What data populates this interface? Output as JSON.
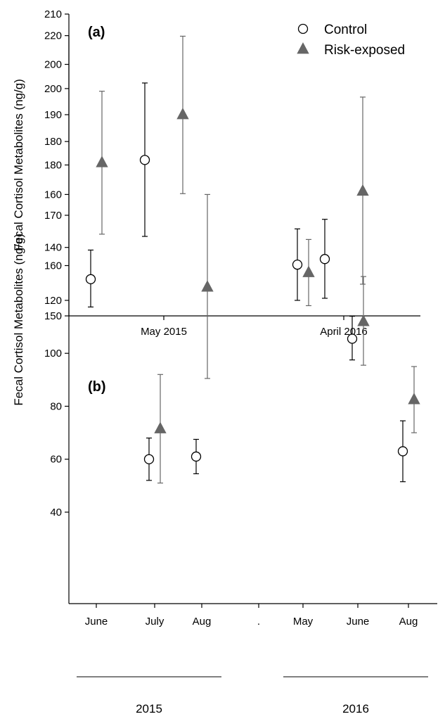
{
  "chart_data": [
    {
      "type": "scatter",
      "panel_label": "(a)",
      "ylabel": "Fecal Cortisol Metabolites (ng/g)",
      "xlabel": "",
      "ylim": [
        150,
        210
      ],
      "yticks": [
        150,
        160,
        170,
        180,
        190,
        200,
        210
      ],
      "grid": false,
      "legend_placement": "top-right",
      "categories": [
        "May 2015",
        "April 2016"
      ],
      "series": [
        {
          "name": "Control",
          "marker": "open-circle",
          "color": "#000000",
          "values": [
            181.0,
            161.3
          ],
          "err_low": [
            165.8,
            153.5
          ],
          "err_high": [
            196.3,
            169.2
          ]
        },
        {
          "name": "Risk-exposed",
          "marker": "filled-triangle",
          "color": "#666666",
          "values": [
            190.0,
            174.8
          ],
          "err_low": [
            174.3,
            156.3
          ],
          "err_high": [
            205.6,
            193.5
          ]
        }
      ]
    },
    {
      "type": "scatter",
      "panel_label": "(b)",
      "ylabel": "Fecal Cortisol Metabolites (ng/g)",
      "xlabel": "",
      "ylim": [
        30,
        220
      ],
      "yticks": [
        40,
        60,
        80,
        100,
        120,
        140,
        160,
        180,
        200,
        220
      ],
      "grid": false,
      "categories": [
        "June",
        "July",
        "Aug",
        ".",
        "May",
        "June",
        "Aug"
      ],
      "year_groups": [
        {
          "label": "2015",
          "from": 0,
          "to": 2
        },
        {
          "label": "2016",
          "from": 4,
          "to": 6
        }
      ],
      "series": [
        {
          "name": "Control",
          "marker": "open-circle",
          "color": "#000000",
          "values": [
            128.0,
            60.0,
            61.0,
            null,
            133.5,
            105.5,
            63.0
          ],
          "err_low": [
            117.5,
            52.0,
            54.5,
            null,
            120.0,
            97.5,
            51.5
          ],
          "err_high": [
            139.0,
            68.0,
            67.5,
            null,
            147.0,
            114.0,
            74.5
          ]
        },
        {
          "name": "Risk-exposed",
          "marker": "filled-triangle",
          "color": "#666666",
          "values": [
            172.0,
            71.5,
            125.0,
            null,
            130.5,
            112.0,
            82.5
          ],
          "err_low": [
            145.0,
            51.0,
            90.5,
            null,
            118.0,
            95.5,
            70.0
          ],
          "err_high": [
            199.0,
            92.0,
            160.0,
            null,
            143.0,
            129.0,
            95.0
          ]
        }
      ]
    }
  ]
}
